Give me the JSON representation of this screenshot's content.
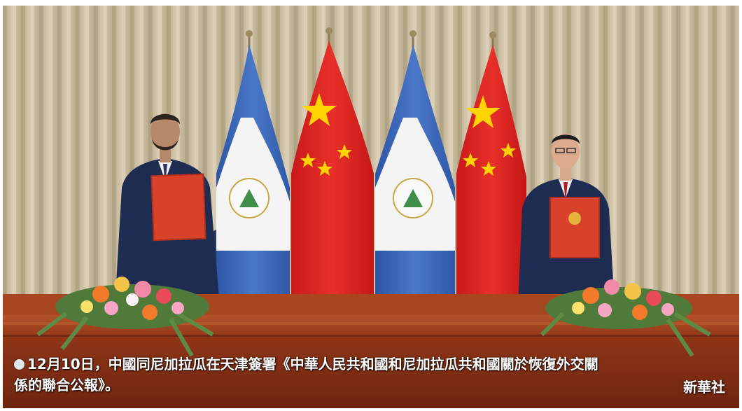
{
  "caption": {
    "line1": "12月10日，中國同尼加拉瓜在天津簽署《中華人民共和國和尼加拉瓜共和國關於恢復外交關",
    "line2": "係的聯合公報》。"
  },
  "credit": "新華社",
  "colors": {
    "curtain": "#c9bca0",
    "china_flag_red": "#e0201e",
    "china_flag_star": "#ffd400",
    "nicaragua_blue": "#3c66b8",
    "nicaragua_white": "#f2f2f2",
    "table_wood": "#9a3a1a",
    "folder_red": "#d8412a"
  },
  "scene": {
    "flags": [
      "nicaragua-flag",
      "china-flag",
      "nicaragua-flag",
      "china-flag"
    ],
    "people": [
      "signatory-left",
      "signatory-right"
    ]
  }
}
